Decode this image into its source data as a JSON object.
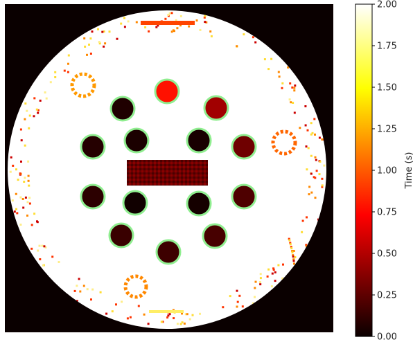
{
  "chart_data": {
    "type": "heatmap",
    "title": "",
    "xlabel": "",
    "ylabel": "",
    "colormap": "hot",
    "background_value": 0.0,
    "phantom_value": 2.0,
    "colorbar": {
      "label": "Time (s)",
      "range": [
        0.0,
        2.0
      ],
      "ticks": [
        "0.00",
        "0.25",
        "0.50",
        "0.75",
        "1.00",
        "1.25",
        "1.50",
        "1.75",
        "2.00"
      ],
      "position": "right"
    },
    "colors": {
      "background": "#0a0000",
      "phantom": "#ffffff",
      "vial_outline": "#90ee90"
    },
    "vials": [
      {
        "id": "vial-1",
        "value": 0.78
      },
      {
        "id": "vial-2",
        "value": 0.45
      },
      {
        "id": "vial-3",
        "value": 0.3
      },
      {
        "id": "vial-4",
        "value": 0.2
      },
      {
        "id": "vial-5",
        "value": 0.18
      },
      {
        "id": "vial-6",
        "value": 0.15
      },
      {
        "id": "vial-7",
        "value": 0.14
      },
      {
        "id": "vial-8",
        "value": 0.1
      },
      {
        "id": "vial-9",
        "value": 0.08
      },
      {
        "id": "vial-10",
        "value": 0.06
      },
      {
        "id": "vial-11",
        "value": 0.05
      },
      {
        "id": "vial-12",
        "value": 0.04
      },
      {
        "id": "vial-13",
        "value": 0.03
      },
      {
        "id": "vial-14",
        "value": 0.02
      }
    ],
    "rectangle_insert": {
      "value": 0.35
    }
  }
}
